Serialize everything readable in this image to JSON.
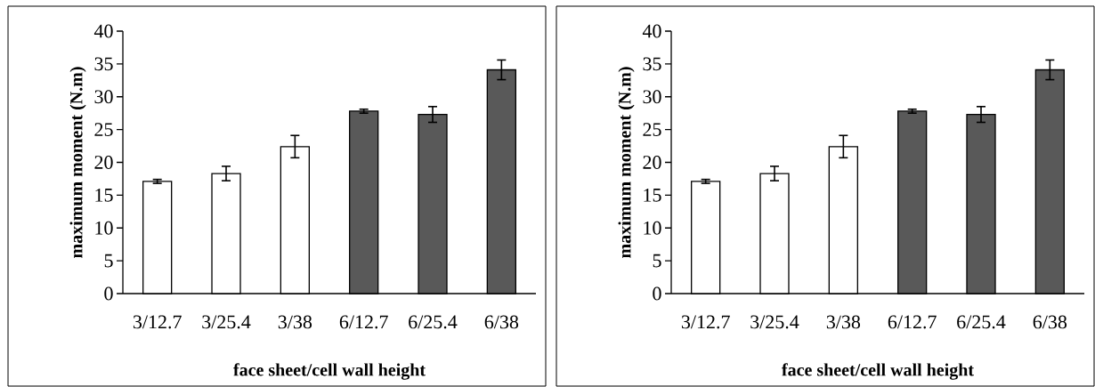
{
  "chart_data": [
    {
      "type": "bar",
      "xlabel": "face sheet/cell wall height",
      "ylabel": "maximum moment (N.m)",
      "categories": [
        "3/12.7",
        "3/25.4",
        "3/38",
        "6/12.7",
        "6/25.4",
        "6/38"
      ],
      "values": [
        17.1,
        18.3,
        22.4,
        27.8,
        27.3,
        34.1
      ],
      "errors": [
        0.3,
        1.1,
        1.7,
        0.3,
        1.2,
        1.5
      ],
      "colors": [
        "#ffffff",
        "#ffffff",
        "#ffffff",
        "#595959",
        "#595959",
        "#595959"
      ],
      "ylim": [
        0,
        40
      ],
      "yticks": [
        0,
        5,
        10,
        15,
        20,
        25,
        30,
        35,
        40
      ]
    },
    {
      "type": "bar",
      "xlabel": "face sheet/cell wall height",
      "ylabel": "maximum moment (N.m)",
      "categories": [
        "3/12.7",
        "3/25.4",
        "3/38",
        "6/12.7",
        "6/25.4",
        "6/38"
      ],
      "values": [
        17.1,
        18.3,
        22.4,
        27.8,
        27.3,
        34.1
      ],
      "errors": [
        0.3,
        1.1,
        1.7,
        0.3,
        1.2,
        1.5
      ],
      "colors": [
        "#ffffff",
        "#ffffff",
        "#ffffff",
        "#595959",
        "#595959",
        "#595959"
      ],
      "ylim": [
        0,
        40
      ],
      "yticks": [
        0,
        5,
        10,
        15,
        20,
        25,
        30,
        35,
        40
      ]
    }
  ]
}
